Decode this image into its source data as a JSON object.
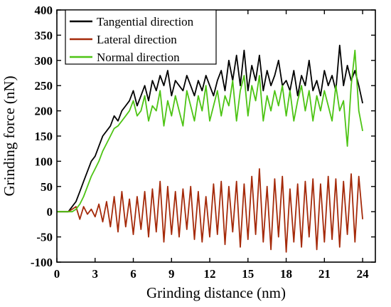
{
  "chart_data": {
    "type": "line",
    "title": "",
    "xlabel": "Grinding distance (nm)",
    "ylabel": "Grinding force (nN)",
    "xlim": [
      0,
      25
    ],
    "ylim": [
      -100,
      400
    ],
    "xticks": [
      0,
      3,
      6,
      9,
      12,
      15,
      18,
      21,
      24
    ],
    "yticks": [
      -100,
      -50,
      0,
      50,
      100,
      150,
      200,
      250,
      300,
      350,
      400
    ],
    "grid": false,
    "legend_position": "top-left",
    "series": [
      {
        "name": "Tangential direction",
        "color": "#000000",
        "x": [
          0,
          0.3,
          0.6,
          0.9,
          1.2,
          1.5,
          1.8,
          2.1,
          2.4,
          2.7,
          3.0,
          3.3,
          3.6,
          3.9,
          4.2,
          4.5,
          4.8,
          5.1,
          5.4,
          5.7,
          6.0,
          6.3,
          6.6,
          6.9,
          7.2,
          7.5,
          7.8,
          8.1,
          8.4,
          8.7,
          9.0,
          9.3,
          9.6,
          9.9,
          10.2,
          10.5,
          10.8,
          11.1,
          11.4,
          11.7,
          12.0,
          12.3,
          12.6,
          12.9,
          13.2,
          13.5,
          13.8,
          14.1,
          14.4,
          14.7,
          15.0,
          15.3,
          15.6,
          15.9,
          16.2,
          16.5,
          16.8,
          17.1,
          17.4,
          17.7,
          18.0,
          18.3,
          18.6,
          18.9,
          19.2,
          19.5,
          19.8,
          20.1,
          20.4,
          20.7,
          21.0,
          21.3,
          21.6,
          21.9,
          22.2,
          22.5,
          22.8,
          23.1,
          23.4,
          23.7,
          24.0
        ],
        "values": [
          0,
          0,
          0,
          0,
          10,
          20,
          40,
          60,
          80,
          100,
          110,
          130,
          150,
          160,
          170,
          190,
          180,
          200,
          210,
          220,
          240,
          210,
          230,
          250,
          220,
          260,
          240,
          270,
          250,
          280,
          230,
          260,
          250,
          240,
          270,
          250,
          230,
          260,
          240,
          270,
          250,
          230,
          260,
          280,
          240,
          300,
          260,
          310,
          250,
          320,
          240,
          290,
          260,
          310,
          240,
          280,
          250,
          270,
          300,
          250,
          260,
          240,
          280,
          230,
          270,
          250,
          300,
          240,
          260,
          230,
          280,
          250,
          270,
          240,
          330,
          250,
          290,
          260,
          280,
          250,
          215
        ]
      },
      {
        "name": "Lateral direction",
        "color": "#a52a0a",
        "x": [
          0,
          0.3,
          0.6,
          0.9,
          1.2,
          1.5,
          1.8,
          2.1,
          2.4,
          2.7,
          3.0,
          3.3,
          3.6,
          3.9,
          4.2,
          4.5,
          4.8,
          5.1,
          5.4,
          5.7,
          6.0,
          6.3,
          6.6,
          6.9,
          7.2,
          7.5,
          7.8,
          8.1,
          8.4,
          8.7,
          9.0,
          9.3,
          9.6,
          9.9,
          10.2,
          10.5,
          10.8,
          11.1,
          11.4,
          11.7,
          12.0,
          12.3,
          12.6,
          12.9,
          13.2,
          13.5,
          13.8,
          14.1,
          14.4,
          14.7,
          15.0,
          15.3,
          15.6,
          15.9,
          16.2,
          16.5,
          16.8,
          17.1,
          17.4,
          17.7,
          18.0,
          18.3,
          18.6,
          18.9,
          19.2,
          19.5,
          19.8,
          20.1,
          20.4,
          20.7,
          21.0,
          21.3,
          21.6,
          21.9,
          22.2,
          22.5,
          22.8,
          23.1,
          23.4,
          23.7,
          24.0
        ],
        "values": [
          0,
          0,
          0,
          0,
          5,
          10,
          -15,
          10,
          -5,
          5,
          -10,
          15,
          -20,
          20,
          -30,
          30,
          -40,
          40,
          -30,
          25,
          -45,
          30,
          -35,
          40,
          -50,
          45,
          -40,
          60,
          -60,
          50,
          -45,
          40,
          -50,
          45,
          -35,
          50,
          -55,
          40,
          -60,
          30,
          -50,
          55,
          -45,
          60,
          -65,
          50,
          -40,
          60,
          -70,
          55,
          -55,
          70,
          -45,
          85,
          -60,
          50,
          -75,
          65,
          -50,
          70,
          -80,
          45,
          -60,
          55,
          -70,
          60,
          -50,
          65,
          -75,
          55,
          -60,
          70,
          -55,
          65,
          -70,
          60,
          -45,
          75,
          -60,
          70,
          -15
        ]
      },
      {
        "name": "Normal direction",
        "color": "#4dc414",
        "x": [
          0,
          0.3,
          0.6,
          0.9,
          1.2,
          1.5,
          1.8,
          2.1,
          2.4,
          2.7,
          3.0,
          3.3,
          3.6,
          3.9,
          4.2,
          4.5,
          4.8,
          5.1,
          5.4,
          5.7,
          6.0,
          6.3,
          6.6,
          6.9,
          7.2,
          7.5,
          7.8,
          8.1,
          8.4,
          8.7,
          9.0,
          9.3,
          9.6,
          9.9,
          10.2,
          10.5,
          10.8,
          11.1,
          11.4,
          11.7,
          12.0,
          12.3,
          12.6,
          12.9,
          13.2,
          13.5,
          13.8,
          14.1,
          14.4,
          14.7,
          15.0,
          15.3,
          15.6,
          15.9,
          16.2,
          16.5,
          16.8,
          17.1,
          17.4,
          17.7,
          18.0,
          18.3,
          18.6,
          18.9,
          19.2,
          19.5,
          19.8,
          20.1,
          20.4,
          20.7,
          21.0,
          21.3,
          21.6,
          21.9,
          22.2,
          22.5,
          22.8,
          23.1,
          23.4,
          23.7,
          24.0
        ],
        "values": [
          0,
          0,
          0,
          0,
          0,
          5,
          15,
          30,
          50,
          70,
          85,
          100,
          120,
          135,
          150,
          165,
          170,
          180,
          190,
          200,
          220,
          190,
          200,
          230,
          180,
          210,
          200,
          240,
          170,
          220,
          190,
          230,
          200,
          170,
          240,
          210,
          180,
          230,
          200,
          250,
          180,
          210,
          240,
          190,
          230,
          210,
          260,
          180,
          240,
          270,
          190,
          250,
          220,
          270,
          180,
          230,
          200,
          240,
          210,
          250,
          190,
          240,
          180,
          220,
          250,
          200,
          240,
          180,
          230,
          200,
          240,
          210,
          180,
          250,
          200,
          220,
          130,
          250,
          320,
          200,
          160
        ]
      }
    ]
  }
}
